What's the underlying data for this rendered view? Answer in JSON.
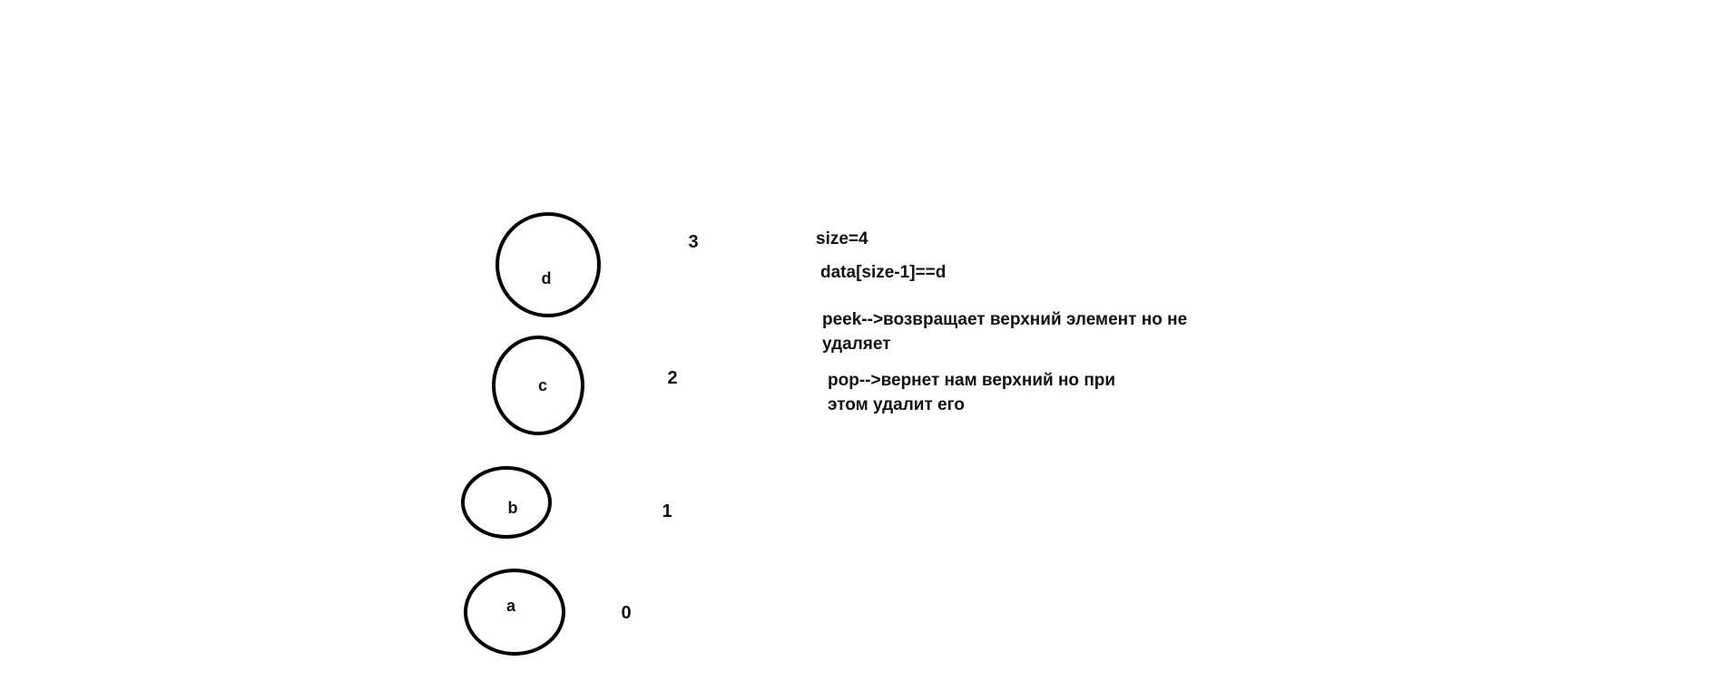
{
  "stack": {
    "elements": [
      {
        "label": "a",
        "index": "0"
      },
      {
        "label": "b",
        "index": "1"
      },
      {
        "label": "c",
        "index": "2"
      },
      {
        "label": "d",
        "index": "3"
      }
    ]
  },
  "notes": {
    "size": "size=4",
    "top_access": "data[size-1]==d",
    "peek_line1": "peek-->возвращает верхний элемент но не",
    "peek_line2": "удаляет",
    "pop_line1": "pop-->вернет нам верхний  но при",
    "pop_line2": "этом удалит его"
  },
  "colors": {
    "ink": "#000000",
    "background": "#ffffff"
  }
}
